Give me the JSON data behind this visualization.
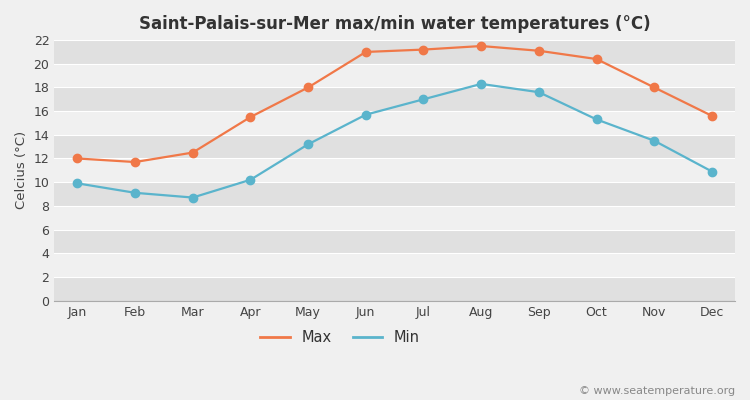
{
  "title": "Saint-Palais-sur-Mer max/min water temperatures (°C)",
  "months": [
    "Jan",
    "Feb",
    "Mar",
    "Apr",
    "May",
    "Jun",
    "Jul",
    "Aug",
    "Sep",
    "Oct",
    "Nov",
    "Dec"
  ],
  "max_values": [
    12.0,
    11.7,
    12.5,
    15.5,
    18.0,
    21.0,
    21.2,
    21.5,
    21.1,
    20.4,
    18.0,
    15.6
  ],
  "min_values": [
    9.9,
    9.1,
    8.7,
    10.2,
    13.2,
    15.7,
    17.0,
    18.3,
    17.6,
    15.3,
    13.5,
    10.9
  ],
  "max_color": "#f07848",
  "min_color": "#5ab4cc",
  "figure_bg": "#f0f0f0",
  "plot_bg_light": "#f0f0f0",
  "plot_bg_dark": "#e0e0e0",
  "grid_color": "#ffffff",
  "ylabel": "Celcius (°C)",
  "ylim": [
    0,
    22
  ],
  "yticks": [
    0,
    2,
    4,
    6,
    8,
    10,
    12,
    14,
    16,
    18,
    20,
    22
  ],
  "legend_max": "Max",
  "legend_min": "Min",
  "watermark": "© www.seatemperature.org",
  "title_fontsize": 12,
  "label_fontsize": 9.5,
  "tick_fontsize": 9,
  "watermark_fontsize": 8,
  "line_width": 1.6,
  "marker_size": 6
}
